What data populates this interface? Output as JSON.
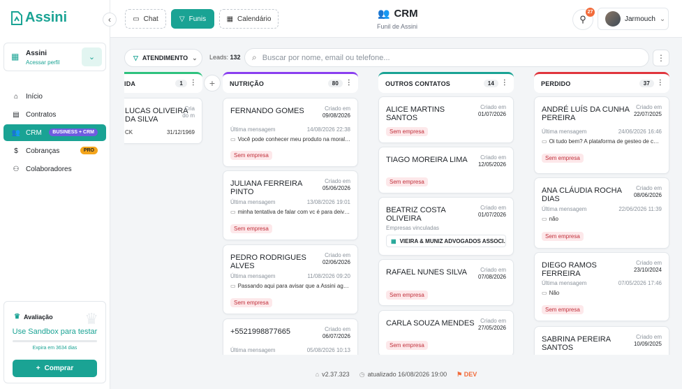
{
  "app": {
    "logo_text": "Assini"
  },
  "sidebar": {
    "org": {
      "name": "Assini",
      "link": "Acessar perfil"
    },
    "items": [
      {
        "label": "Início",
        "icon": "home-icon"
      },
      {
        "label": "Contratos",
        "icon": "document-icon"
      },
      {
        "label": "CRM",
        "icon": "users-icon",
        "badge": "BUSINESS + CRM",
        "active": true
      },
      {
        "label": "Cobranças",
        "icon": "dollar-icon",
        "badge": "PRO"
      },
      {
        "label": "Colaboradores",
        "icon": "team-icon"
      }
    ],
    "trial": {
      "title": "Avaliação",
      "link": "Use Sandbox para testar",
      "expires": "Expira em 3634 dias",
      "button": "Comprar"
    }
  },
  "header": {
    "buttons": {
      "chat": "Chat",
      "funnels": "Funis",
      "calendar": "Calendário"
    },
    "title": "CRM",
    "subtitle": "Funil de Assini",
    "notifications": "27",
    "user": "Jarmouch"
  },
  "toolbar": {
    "filter": "ATENDIMENTO",
    "leads_label": "Leads:",
    "leads_count": "132",
    "search_placeholder": "Buscar por nome, email ou telefone..."
  },
  "columns": [
    {
      "title": "IDA",
      "count": "1",
      "color": "#2ec27e",
      "cards": [
        {
          "name": "LUCAS OLIVEIRA DA SILVA",
          "created_label": "Cria do m",
          "created": "",
          "meta_l": "CK",
          "meta_r": "31/12/1969"
        }
      ]
    },
    {
      "title": "NUTRIÇÃO",
      "count": "80",
      "color": "#8a3ff0",
      "cards": [
        {
          "name": "FERNANDO GOMES",
          "created_label": "Criado em",
          "created": "09/08/2026",
          "last_label": "Última mensagem",
          "last_time": "14/08/2026 22:38",
          "msg": "Você pode conhecer meu produto na moral ...",
          "tag": "Sem empresa"
        },
        {
          "name": "JULIANA FERREIRA PINTO",
          "created_label": "Criado em",
          "created": "05/06/2026",
          "last_label": "Última mensagem",
          "last_time": "13/08/2026 19:01",
          "msg": "minha tentativa de falar com vc é para deivar...",
          "tag": "Sem empresa"
        },
        {
          "name": "PEDRO RODRIGUES ALVES",
          "created_label": "Criado em",
          "created": "02/06/2026",
          "last_label": "Última mensagem",
          "last_time": "11/08/2026 09:20",
          "msg": "Passando aqui para avisar que a Assini agora ...",
          "tag": "Sem empresa"
        },
        {
          "name": "+5521998877665",
          "created_label": "Criado em",
          "created": "06/07/2026",
          "last_label": "Última mensagem",
          "last_time": "05/08/2026 10:13"
        }
      ]
    },
    {
      "title": "OUTROS CONTATOS",
      "count": "14",
      "color": "#1aa394",
      "cards": [
        {
          "name": "ALICE MARTINS SANTOS",
          "created_label": "Criado em",
          "created": "01/07/2026",
          "tag": "Sem empresa"
        },
        {
          "name": "TIAGO MOREIRA LIMA",
          "created_label": "Criado em",
          "created": "12/05/2026",
          "tag": "Sem empresa"
        },
        {
          "name": "BEATRIZ COSTA OLIVEIRA",
          "created_label": "Criado em",
          "created": "01/07/2026",
          "linked_label": "Empresas vinculadas",
          "company": "VIEIRA & MUNIZ ADVOGADOS ASSOCI..."
        },
        {
          "name": "RAFAEL NUNES SILVA",
          "created_label": "Criado em",
          "created": "07/08/2026",
          "tag": "Sem empresa"
        },
        {
          "name": "CARLA SOUZA MENDES",
          "created_label": "Criado em",
          "created": "27/05/2026",
          "tag": "Sem empresa"
        }
      ]
    },
    {
      "title": "PERDIDO",
      "count": "37",
      "color": "#e0353d",
      "cards": [
        {
          "name": "ANDRÉ LUÍS DA CUNHA PEREIRA",
          "created_label": "Criado em",
          "created": "22/07/2025",
          "last_label": "Última mensagem",
          "last_time": "24/06/2026 16:46",
          "msg": "Oi tudo bem? A plataforma de gesteo de con...",
          "tag": "Sem empresa"
        },
        {
          "name": "ANA CLÁUDIA ROCHA DIAS",
          "created_label": "Criado em",
          "created": "08/06/2026",
          "last_label": "Última mensagem",
          "last_time": "22/06/2026 11:39",
          "msg": "não",
          "tag": "Sem empresa"
        },
        {
          "name": "DIEGO RAMOS FERREIRA",
          "created_label": "Criado em",
          "created": "23/10/2024",
          "last_label": "Última mensagem",
          "last_time": "07/05/2026 17:46",
          "msg": "Não",
          "tag": "Sem empresa"
        },
        {
          "name": "SABRINA PEREIRA SANTOS",
          "created_label": "Criado em",
          "created": "10/09/2025"
        }
      ]
    }
  ],
  "footer": {
    "version": "v2.37.323",
    "updated": "atualizado 16/08/2026 19:00",
    "env": "DEV"
  }
}
